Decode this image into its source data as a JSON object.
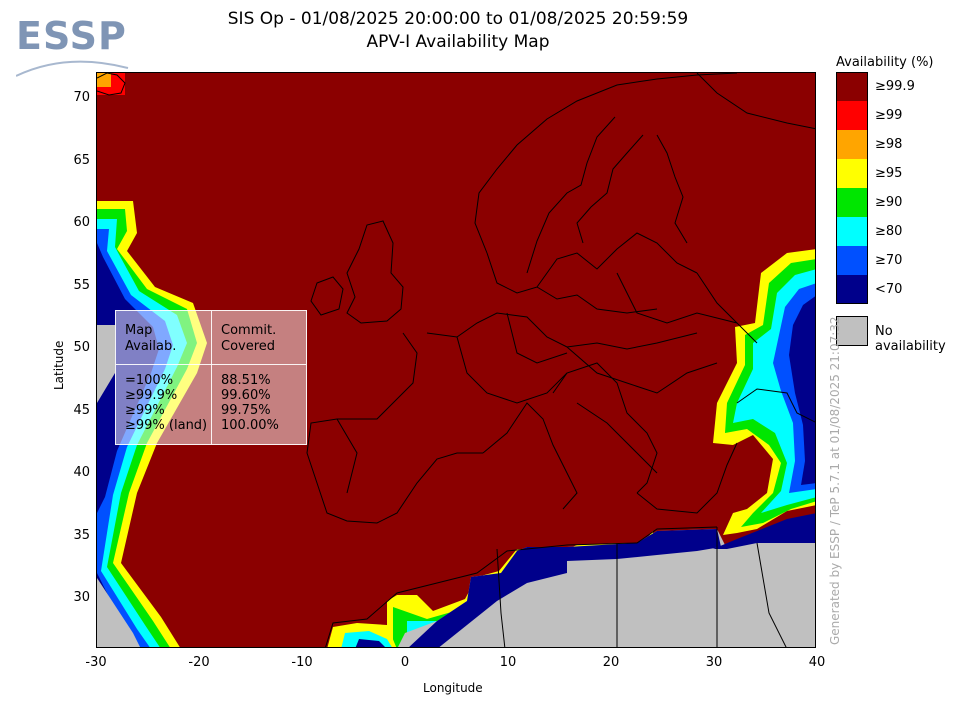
{
  "logo": {
    "text": "ESSP"
  },
  "title": {
    "line1": "SIS Op - 01/08/2025 20:00:00 to 01/08/2025 20:59:59",
    "line2": "APV-I Availability Map"
  },
  "axes": {
    "xlabel": "Longitude",
    "ylabel": "Latitude",
    "xticks": [
      "-30",
      "-20",
      "-10",
      "0",
      "10",
      "20",
      "30",
      "40"
    ],
    "yticks": [
      "70",
      "65",
      "60",
      "55",
      "50",
      "45",
      "40",
      "35",
      "30"
    ],
    "xlim": [
      -30,
      40
    ],
    "ylim": [
      26,
      72
    ]
  },
  "legend": {
    "title": "Availability (%)",
    "items": [
      {
        "label": "≥99.9",
        "color": "#8b0000"
      },
      {
        "label": "≥99",
        "color": "#ff0000"
      },
      {
        "label": "≥98",
        "color": "#ffa500"
      },
      {
        "label": "≥95",
        "color": "#ffff00"
      },
      {
        "label": "≥90",
        "color": "#00e600"
      },
      {
        "label": "≥80",
        "color": "#00ffff"
      },
      {
        "label": "≥70",
        "color": "#0050ff"
      },
      {
        "label": "<70",
        "color": "#00008b"
      }
    ],
    "no_availability": {
      "label": "No availability",
      "color": "#c0c0c0"
    }
  },
  "stats": {
    "header_col1": [
      "Map",
      "Availab."
    ],
    "header_col2": [
      "Commit.",
      "Covered"
    ],
    "rows": [
      {
        "avail": "=100%",
        "covered": "88.51%"
      },
      {
        "avail": "≥99.9%",
        "covered": "99.60%"
      },
      {
        "avail": "≥99%",
        "covered": "99.75%"
      },
      {
        "avail": "≥99% (land)",
        "covered": "100.00%"
      }
    ]
  },
  "generated_by": "Generated by ESSP / TeP 5.7.1 at 01/08/2025 21:07:32"
}
